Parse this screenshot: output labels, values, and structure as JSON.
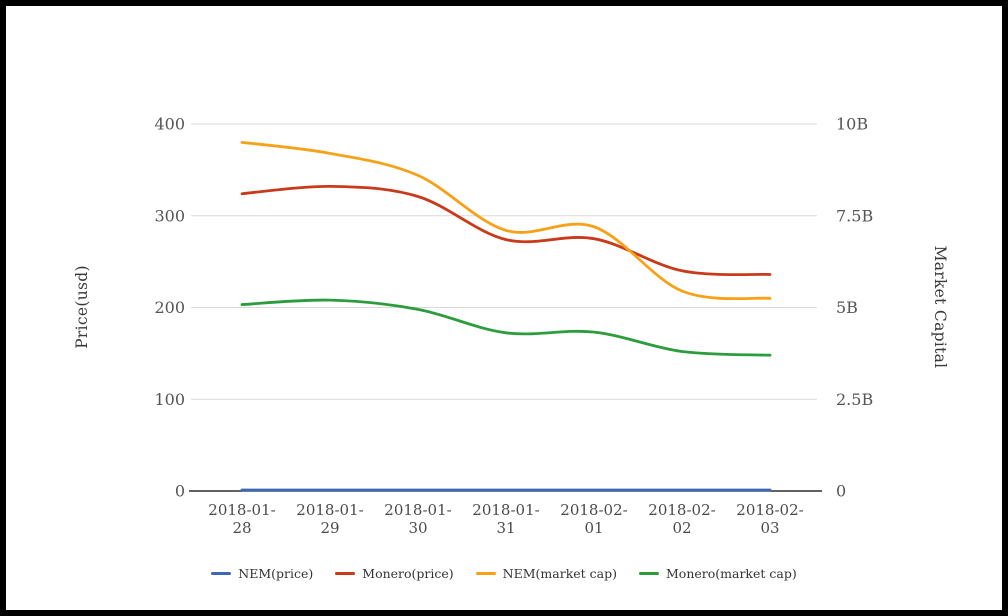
{
  "chart_data": {
    "type": "line",
    "smooth": true,
    "x": [
      "2018-01-28",
      "2018-01-29",
      "2018-01-30",
      "2018-01-31",
      "2018-02-01",
      "2018-02-02",
      "2018-02-03"
    ],
    "series": [
      {
        "name": "NEM(price)",
        "axis": "left",
        "color": "#3c68b5",
        "values": [
          1,
          1,
          1,
          1,
          1,
          1,
          1
        ]
      },
      {
        "name": "Monero(price)",
        "axis": "left",
        "color": "#c93a1a",
        "values": [
          324,
          332,
          321,
          274,
          275,
          240,
          236
        ]
      },
      {
        "name": "NEM(market cap)",
        "axis": "right",
        "color": "#f7a118",
        "values": [
          9.5,
          9.2,
          8.6,
          7.1,
          7.2,
          5.45,
          5.25
        ]
      },
      {
        "name": "Monero(market cap)",
        "axis": "right",
        "color": "#2d9c3c",
        "values": [
          5.08,
          5.2,
          4.95,
          4.31,
          4.33,
          3.8,
          3.7
        ]
      }
    ],
    "ylabel_left": "Price(usd)",
    "ylabel_right": "Market Capital",
    "left_axis": {
      "lim": [
        0,
        400
      ],
      "ticks": [
        0,
        100,
        200,
        300,
        400
      ],
      "tick_labels": [
        "0",
        "100",
        "200",
        "300",
        "400"
      ]
    },
    "right_axis": {
      "lim": [
        0,
        10
      ],
      "ticks": [
        0,
        2.5,
        5,
        7.5,
        10
      ],
      "tick_labels": [
        "0",
        "2.5B",
        "5B",
        "7.5B",
        "10B"
      ]
    },
    "grid": "horizontal-only",
    "legend_position": "bottom-center",
    "xlabel": ""
  },
  "style": {
    "gridline_color": "#d9d9d9",
    "axis_line_color": "#2f2f2f",
    "tick_text_color": "#555555",
    "background": "#ffffff",
    "frame_border": "#000000"
  }
}
